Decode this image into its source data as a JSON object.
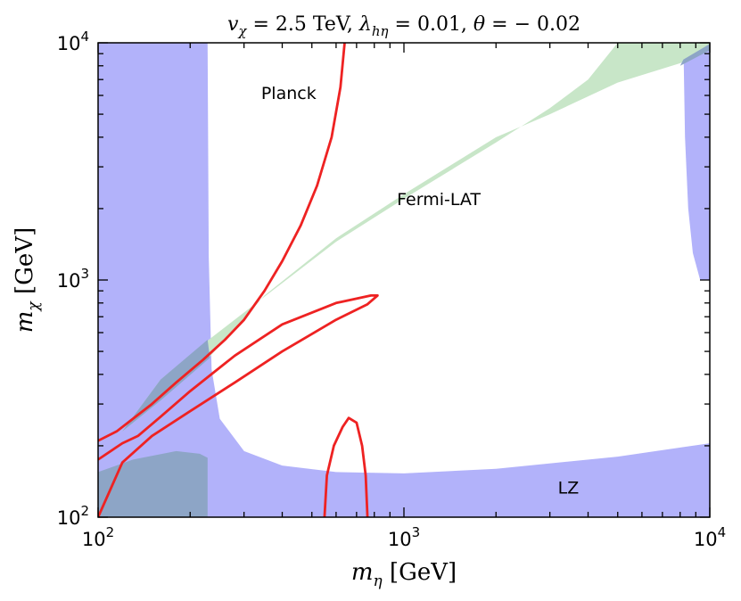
{
  "chart_data": {
    "type": "area",
    "title": {
      "parts": [
        {
          "math": "v",
          "sub": "χ"
        },
        {
          "text": " = 2.5 TeV,  "
        },
        {
          "math": "λ",
          "sub": "hη"
        },
        {
          "text": " = 0.01,  "
        },
        {
          "math": "θ"
        },
        {
          "text": " = − 0.02"
        }
      ]
    },
    "xlabel": {
      "math": "m",
      "sub": "η",
      "text": " [GeV]"
    },
    "ylabel": {
      "math": "m",
      "sub": "χ",
      "text": " [GeV]"
    },
    "x_scale": "log",
    "y_scale": "log",
    "xlim": [
      100,
      10000
    ],
    "ylim": [
      100,
      10000
    ],
    "x_ticks": [
      {
        "value": 100,
        "base": "10",
        "exp": "2"
      },
      {
        "value": 1000,
        "base": "10",
        "exp": "3"
      },
      {
        "value": 10000,
        "base": "10",
        "exp": "4"
      }
    ],
    "y_ticks": [
      {
        "value": 100,
        "base": "10",
        "exp": "2"
      },
      {
        "value": 1000,
        "base": "10",
        "exp": "3"
      },
      {
        "value": 10000,
        "base": "10",
        "exp": "4"
      }
    ],
    "grid": false,
    "colors": {
      "lz": "#b2b2fa",
      "fermi": "#c8e6c8",
      "overlap": "#8da5c6",
      "planck": "#ee2222"
    },
    "series": [
      {
        "name": "LZ",
        "kind": "excluded-region",
        "color": "#b2b2fa",
        "polygons": [
          [
            [
              100,
              10000
            ],
            [
              228,
              10000
            ],
            [
              230,
              1250
            ],
            [
              235,
              420
            ],
            [
              250,
              260
            ],
            [
              300,
              190
            ],
            [
              400,
              165
            ],
            [
              600,
              155
            ],
            [
              1000,
              153
            ],
            [
              2000,
              160
            ],
            [
              5000,
              180
            ],
            [
              10000,
              205
            ],
            [
              10000,
              100
            ],
            [
              100,
              100
            ]
          ],
          [
            [
              8000,
              10000
            ],
            [
              10000,
              10000
            ],
            [
              10000,
              1000
            ],
            [
              9300,
              1000
            ],
            [
              8800,
              1300
            ],
            [
              8500,
              2000
            ],
            [
              8300,
              4000
            ],
            [
              8200,
              10000
            ]
          ]
        ]
      },
      {
        "name": "Fermi-LAT",
        "kind": "excluded-band",
        "color": "#c8e6c8",
        "polygons": [
          [
            [
              120,
              230
            ],
            [
              160,
              380
            ],
            [
              230,
              560
            ],
            [
              350,
              850
            ],
            [
              600,
              1450
            ],
            [
              1000,
              2200
            ],
            [
              2000,
              3800
            ],
            [
              3000,
              5300
            ],
            [
              4000,
              7000
            ],
            [
              5000,
              10000
            ],
            [
              10000,
              10000
            ],
            [
              10000,
              9300
            ],
            [
              8000,
              8200
            ],
            [
              5000,
              6800
            ],
            [
              3000,
              5000
            ],
            [
              2000,
              4000
            ],
            [
              1000,
              2300
            ],
            [
              600,
              1500
            ],
            [
              350,
              860
            ],
            [
              230,
              470
            ],
            [
              160,
              310
            ],
            [
              120,
              230
            ]
          ]
        ]
      },
      {
        "name": "LZ ∩ Fermi-LAT",
        "kind": "overlap",
        "color": "#8da5c6",
        "polygons": [
          [
            [
              120,
              230
            ],
            [
              160,
              380
            ],
            [
              228,
              560
            ],
            [
              232,
              470
            ],
            [
              160,
              310
            ],
            [
              120,
              230
            ]
          ],
          [
            [
              100,
              100
            ],
            [
              100,
              155
            ],
            [
              130,
              175
            ],
            [
              180,
              190
            ],
            [
              215,
              185
            ],
            [
              228,
              178
            ],
            [
              228,
              100
            ]
          ],
          [
            [
              8000,
              8000
            ],
            [
              8200,
              8500
            ],
            [
              10000,
              9900
            ],
            [
              10000,
              9300
            ]
          ]
        ]
      },
      {
        "name": "Planck",
        "kind": "contour",
        "color": "#ee2222",
        "curves": [
          [
            [
              100,
              210
            ],
            [
              115,
              230
            ],
            [
              130,
              260
            ],
            [
              150,
              300
            ],
            [
              180,
              370
            ],
            [
              220,
              460
            ],
            [
              260,
              560
            ],
            [
              300,
              680
            ],
            [
              350,
              900
            ],
            [
              400,
              1200
            ],
            [
              460,
              1700
            ],
            [
              520,
              2500
            ],
            [
              580,
              4000
            ],
            [
              620,
              6500
            ],
            [
              640,
              10000
            ]
          ],
          [
            [
              100,
              175
            ],
            [
              120,
              205
            ],
            [
              135,
              220
            ],
            [
              160,
              265
            ],
            [
              200,
              340
            ],
            [
              280,
              480
            ],
            [
              400,
              650
            ],
            [
              600,
              800
            ],
            [
              780,
              860
            ],
            [
              820,
              860
            ],
            [
              760,
              790
            ],
            [
              600,
              680
            ],
            [
              400,
              500
            ],
            [
              280,
              370
            ],
            [
              200,
              280
            ],
            [
              150,
              220
            ],
            [
              120,
              170
            ],
            [
              100,
              100
            ]
          ],
          [
            [
              550,
              100
            ],
            [
              560,
              150
            ],
            [
              590,
              200
            ],
            [
              630,
              240
            ],
            [
              660,
              262
            ],
            [
              700,
              250
            ],
            [
              730,
              200
            ],
            [
              750,
              150
            ],
            [
              760,
              100
            ]
          ]
        ]
      }
    ],
    "annotations": [
      {
        "text": "Planck",
        "x": 420,
        "y": 5800
      },
      {
        "text": "Fermi-LAT",
        "x": 1300,
        "y": 2070
      },
      {
        "text": "LZ",
        "x": 3450,
        "y": 126
      }
    ]
  }
}
